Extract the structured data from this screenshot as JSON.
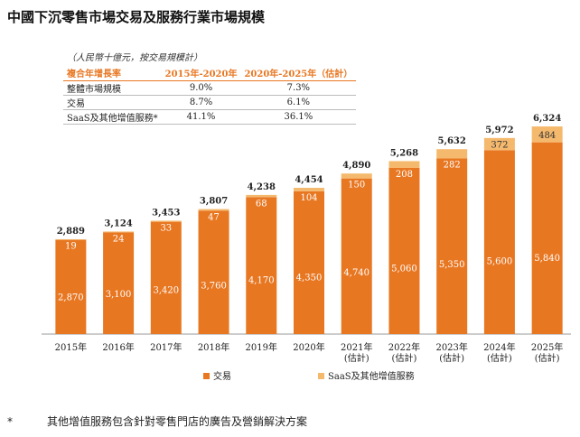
{
  "title": "中國下沉零售市場交易及服務行業市場規模",
  "unit_note": "（人民幣十億元，按交易規模計）",
  "cagr_table": {
    "headers": [
      "複合年增長率",
      "2015年-2020年",
      "2020年-2025年（估計）"
    ],
    "rows": [
      [
        "整體市場規模",
        "9.0%",
        "7.3%"
      ],
      [
        "交易",
        "8.7%",
        "6.1%"
      ],
      [
        "SaaS及其他增值服務*",
        "41.1%",
        "36.1%"
      ]
    ]
  },
  "chart_data": {
    "type": "bar",
    "stacked": true,
    "categories": [
      "2015年",
      "2016年",
      "2017年",
      "2018年",
      "2019年",
      "2020年",
      "2021年\n(估計)",
      "2022年\n(估計)",
      "2023年\n(估計)",
      "2024年\n(估計)",
      "2025年\n(估計)"
    ],
    "series": [
      {
        "name": "交易",
        "values": [
          2870,
          3100,
          3420,
          3760,
          4170,
          4350,
          4740,
          5060,
          5350,
          5600,
          5840
        ],
        "color": "#e87722"
      },
      {
        "name": "SaaS及其他增值服務",
        "values": [
          19,
          24,
          33,
          47,
          68,
          104,
          150,
          208,
          282,
          372,
          484
        ],
        "color": "#f5b96e"
      }
    ],
    "totals": [
      2889,
      3124,
      3453,
      3807,
      4238,
      4454,
      4890,
      5268,
      5632,
      5972,
      6324
    ],
    "ylim": [
      0,
      6600
    ],
    "grid": false,
    "legend_position": "bottom"
  },
  "footnote": {
    "marker": "*",
    "text": "其他增值服務包含針對零售門店的廣告及營銷解決方案"
  }
}
